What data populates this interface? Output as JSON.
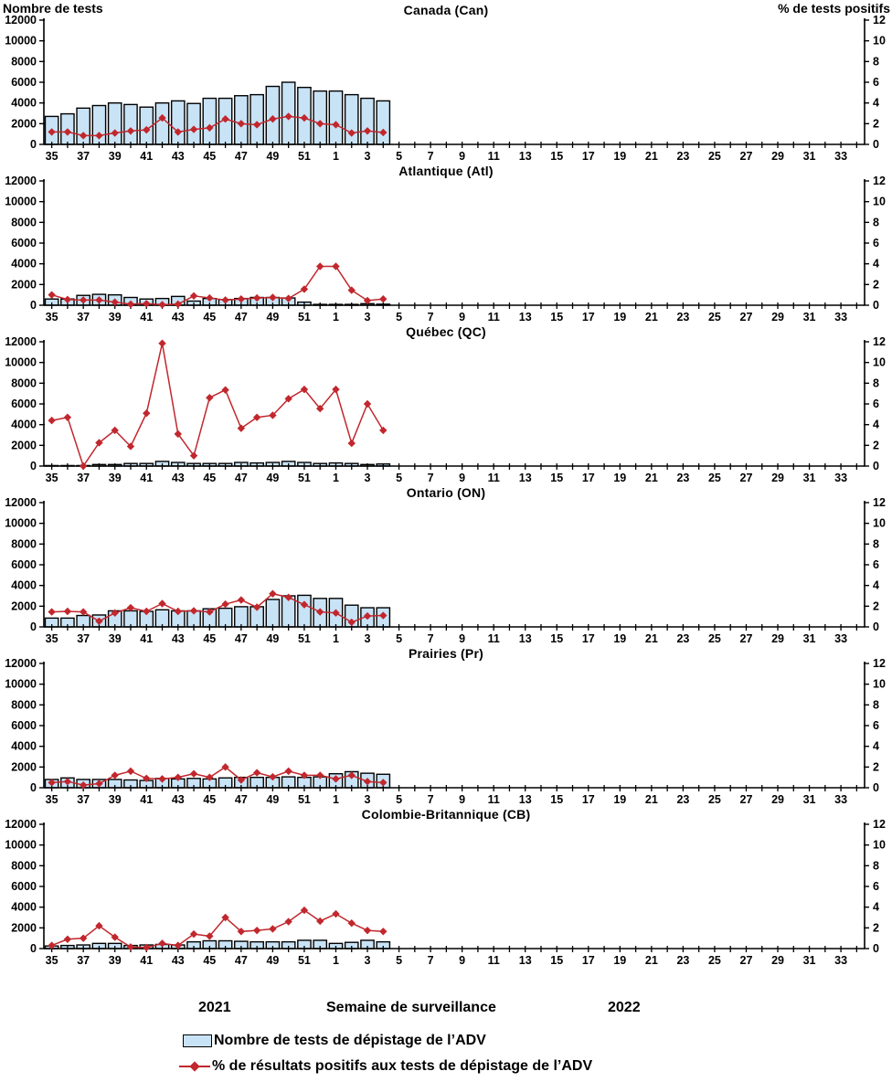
{
  "header": {
    "left_axis_label": "Nombre de tests",
    "right_axis_label": "% de tests positifs"
  },
  "footer": {
    "year_left": "2021",
    "axis_title": "Semaine de surveillance",
    "year_right": "2022"
  },
  "legend": {
    "bar_label": "Nombre de tests de dépistage de l’ADV",
    "line_label": "% de résultats positifs aux tests de dépistage de l’ADV"
  },
  "colors": {
    "bar_fill": "#C9E3F6",
    "bar_stroke": "#000000",
    "line": "#C1272D",
    "axis": "#000000",
    "text": "#000000"
  },
  "axes": {
    "weeks": [
      "35",
      "36",
      "37",
      "38",
      "39",
      "40",
      "41",
      "42",
      "43",
      "44",
      "45",
      "46",
      "47",
      "48",
      "49",
      "50",
      "51",
      "52",
      "1",
      "2",
      "3",
      "4",
      "5",
      "6",
      "7",
      "8",
      "9",
      "10",
      "11",
      "12",
      "13",
      "14",
      "15",
      "16",
      "17",
      "18",
      "19",
      "20",
      "21",
      "22",
      "23",
      "24",
      "25",
      "26",
      "27",
      "28",
      "29",
      "30",
      "31",
      "32",
      "33",
      "34"
    ],
    "labeled_weeks": [
      "35",
      "37",
      "39",
      "41",
      "43",
      "45",
      "47",
      "49",
      "51",
      "1",
      "3",
      "5",
      "7",
      "9",
      "11",
      "13",
      "15",
      "17",
      "19",
      "21",
      "23",
      "25",
      "27",
      "29",
      "31",
      "33"
    ],
    "left_ticks": [
      0,
      2000,
      4000,
      6000,
      8000,
      10000,
      12000
    ],
    "right_ticks": [
      0,
      2,
      4,
      6,
      8,
      10,
      12
    ],
    "left_max": 12000,
    "right_max": 12
  },
  "chart_data": [
    {
      "title": "Canada (Can)",
      "type": "bar",
      "categories": [
        "35",
        "36",
        "37",
        "38",
        "39",
        "40",
        "41",
        "42",
        "43",
        "44",
        "45",
        "46",
        "47",
        "48",
        "49",
        "50",
        "51",
        "52",
        "1",
        "2",
        "3",
        "4"
      ],
      "ylim_left": [
        0,
        12000
      ],
      "ylim_right": [
        0,
        12
      ],
      "series": [
        {
          "name": "Nombre de tests de dépistage de l’ADV",
          "type": "bar",
          "axis": "left",
          "values": [
            2700,
            2950,
            3500,
            3750,
            4000,
            3850,
            3600,
            4000,
            4200,
            3950,
            4450,
            4450,
            4700,
            4800,
            5600,
            6000,
            5500,
            5150,
            5150,
            4800,
            4450,
            4200
          ]
        },
        {
          "name": "% de résultats positifs aux tests de dépistage de l’ADV",
          "type": "line",
          "axis": "right",
          "values": [
            1.2,
            1.2,
            0.85,
            0.85,
            1.1,
            1.3,
            1.4,
            2.55,
            1.2,
            1.45,
            1.6,
            2.45,
            2.0,
            1.9,
            2.45,
            2.7,
            2.55,
            2.0,
            1.9,
            1.1,
            1.3,
            1.15
          ]
        }
      ]
    },
    {
      "title": "Atlantique (Atl)",
      "type": "bar",
      "categories": [
        "35",
        "36",
        "37",
        "38",
        "39",
        "40",
        "41",
        "42",
        "43",
        "44",
        "45",
        "46",
        "47",
        "48",
        "49",
        "50",
        "51",
        "52",
        "1",
        "2",
        "3",
        "4"
      ],
      "ylim_left": [
        0,
        12000
      ],
      "ylim_right": [
        0,
        12
      ],
      "series": [
        {
          "name": "Nombre de tests de dépistage de l’ADV",
          "type": "bar",
          "axis": "left",
          "values": [
            600,
            600,
            950,
            1050,
            1000,
            750,
            600,
            650,
            850,
            400,
            650,
            550,
            650,
            750,
            750,
            700,
            300,
            80,
            80,
            80,
            150,
            100
          ]
        },
        {
          "name": "% de résultats positifs aux tests de dépistage de l’ADV",
          "type": "line",
          "axis": "right",
          "values": [
            1.0,
            0.55,
            0.5,
            0.5,
            0.3,
            0.1,
            0.15,
            0.05,
            0.1,
            0.9,
            0.7,
            0.5,
            0.6,
            0.7,
            0.75,
            0.65,
            1.55,
            3.75,
            3.75,
            1.45,
            0.45,
            0.6
          ]
        }
      ]
    },
    {
      "title": "Québec (QC)",
      "type": "bar",
      "categories": [
        "35",
        "36",
        "37",
        "38",
        "39",
        "40",
        "41",
        "42",
        "43",
        "44",
        "45",
        "46",
        "47",
        "48",
        "49",
        "50",
        "51",
        "52",
        "1",
        "2",
        "3",
        "4"
      ],
      "ylim_left": [
        0,
        12000
      ],
      "ylim_right": [
        0,
        12
      ],
      "series": [
        {
          "name": "Nombre de tests de dépistage de l’ADV",
          "type": "bar",
          "axis": "left",
          "values": [
            50,
            50,
            50,
            150,
            150,
            250,
            250,
            450,
            350,
            250,
            250,
            250,
            350,
            300,
            350,
            450,
            350,
            250,
            300,
            250,
            150,
            200
          ]
        },
        {
          "name": "% de résultats positifs aux tests de dépistage de l’ADV",
          "type": "line",
          "axis": "right",
          "values": [
            4.4,
            4.7,
            0.0,
            2.25,
            3.45,
            1.9,
            5.1,
            11.85,
            3.1,
            1.0,
            6.6,
            7.35,
            3.65,
            4.7,
            4.9,
            6.5,
            7.4,
            5.55,
            7.4,
            2.2,
            6.0,
            3.45
          ]
        }
      ]
    },
    {
      "title": "Ontario (ON)",
      "type": "bar",
      "categories": [
        "35",
        "36",
        "37",
        "38",
        "39",
        "40",
        "41",
        "42",
        "43",
        "44",
        "45",
        "46",
        "47",
        "48",
        "49",
        "50",
        "51",
        "52",
        "1",
        "2",
        "3",
        "4"
      ],
      "ylim_left": [
        0,
        12000
      ],
      "ylim_right": [
        0,
        12
      ],
      "series": [
        {
          "name": "Nombre de tests de dépistage de l’ADV",
          "type": "bar",
          "axis": "left",
          "values": [
            850,
            850,
            1100,
            1150,
            1550,
            1550,
            1500,
            1650,
            1550,
            1550,
            1750,
            1800,
            1950,
            1950,
            2650,
            3000,
            3050,
            2750,
            2750,
            2100,
            1850,
            1850
          ]
        },
        {
          "name": "% de résultats positifs aux tests de dépistage de l’ADV",
          "type": "line",
          "axis": "right",
          "values": [
            1.45,
            1.5,
            1.45,
            0.55,
            1.35,
            1.85,
            1.5,
            2.25,
            1.5,
            1.55,
            1.45,
            2.2,
            2.6,
            1.9,
            3.2,
            2.85,
            2.15,
            1.45,
            1.35,
            0.45,
            1.05,
            1.1
          ]
        }
      ]
    },
    {
      "title": "Prairies (Pr)",
      "type": "bar",
      "categories": [
        "35",
        "36",
        "37",
        "38",
        "39",
        "40",
        "41",
        "42",
        "43",
        "44",
        "45",
        "46",
        "47",
        "48",
        "49",
        "50",
        "51",
        "52",
        "1",
        "2",
        "3",
        "4"
      ],
      "ylim_left": [
        0,
        12000
      ],
      "ylim_right": [
        0,
        12
      ],
      "series": [
        {
          "name": "Nombre de tests de dépistage de l’ADV",
          "type": "bar",
          "axis": "left",
          "values": [
            800,
            950,
            800,
            800,
            800,
            750,
            700,
            900,
            850,
            900,
            850,
            950,
            1000,
            1000,
            1000,
            1050,
            1000,
            1050,
            1350,
            1550,
            1400,
            1300
          ]
        },
        {
          "name": "% de résultats positifs aux tests de dépistage de l’ADV",
          "type": "line",
          "axis": "right",
          "values": [
            0.5,
            0.6,
            0.25,
            0.4,
            1.2,
            1.6,
            0.9,
            0.85,
            1.0,
            1.35,
            1.0,
            2.0,
            0.75,
            1.45,
            1.05,
            1.6,
            1.2,
            1.2,
            0.85,
            1.2,
            0.6,
            0.5
          ]
        }
      ]
    },
    {
      "title": "Colombie-Britannique (CB)",
      "type": "bar",
      "categories": [
        "35",
        "36",
        "37",
        "38",
        "39",
        "40",
        "41",
        "42",
        "43",
        "44",
        "45",
        "46",
        "47",
        "48",
        "49",
        "50",
        "51",
        "52",
        "1",
        "2",
        "3",
        "4"
      ],
      "ylim_left": [
        0,
        12000
      ],
      "ylim_right": [
        0,
        12
      ],
      "series": [
        {
          "name": "Nombre de tests de dépistage de l’ADV",
          "type": "bar",
          "axis": "left",
          "values": [
            250,
            300,
            350,
            500,
            500,
            300,
            350,
            400,
            350,
            650,
            750,
            750,
            700,
            650,
            650,
            650,
            800,
            800,
            500,
            600,
            800,
            650
          ]
        },
        {
          "name": "% de résultats positifs aux tests de dépistage de l’ADV",
          "type": "line",
          "axis": "right",
          "values": [
            0.3,
            0.9,
            1.0,
            2.2,
            1.1,
            0.15,
            0.1,
            0.5,
            0.3,
            1.4,
            1.2,
            3.0,
            1.65,
            1.75,
            1.9,
            2.6,
            3.7,
            2.65,
            3.35,
            2.45,
            1.75,
            1.65
          ]
        }
      ]
    }
  ]
}
